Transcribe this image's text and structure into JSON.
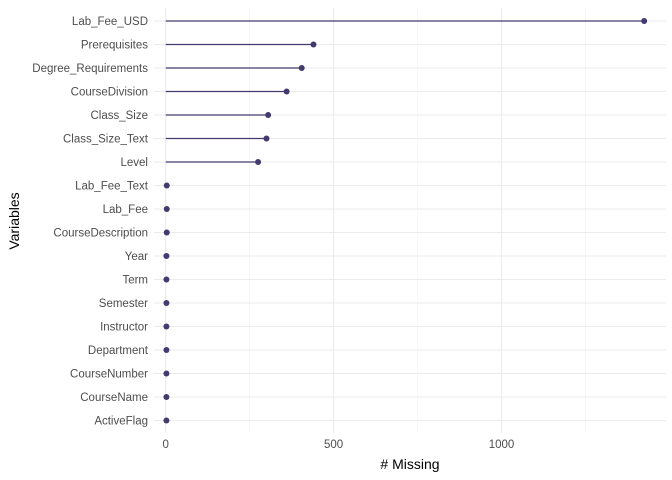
{
  "chart_data": {
    "type": "lollipop",
    "orientation": "horizontal",
    "xlabel": "# Missing",
    "ylabel": "Variables",
    "xlim": [
      -35,
      1490
    ],
    "x_ticks": [
      0,
      500,
      1000
    ],
    "x_tick_labels": [
      "0",
      "500",
      "1000"
    ],
    "x_minor_ticks": [
      250,
      750,
      1250
    ],
    "grid": true,
    "color": "#443a6e",
    "categories": [
      "Lab_Fee_USD",
      "Prerequisites",
      "Degree_Requirements",
      "CourseDivision",
      "Class_Size",
      "Class_Size_Text",
      "Level",
      "Lab_Fee_Text",
      "Lab_Fee",
      "CourseDescription",
      "Year",
      "Term",
      "Semester",
      "Instructor",
      "Department",
      "CourseNumber",
      "CourseName",
      "ActiveFlag"
    ],
    "values": [
      1425,
      440,
      405,
      360,
      305,
      300,
      275,
      3,
      3,
      3,
      2,
      2,
      2,
      2,
      2,
      2,
      2,
      2
    ]
  }
}
